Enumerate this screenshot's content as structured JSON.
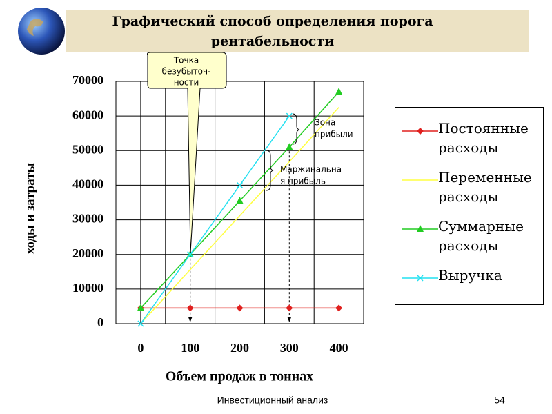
{
  "header": {
    "title": "Графический способ определения порога рентабельности"
  },
  "chart_data": {
    "type": "line",
    "x": [
      0,
      100,
      200,
      300,
      400
    ],
    "xlim": [
      -50,
      450
    ],
    "xticks": [
      0,
      100,
      200,
      300,
      400
    ],
    "ylim": [
      0,
      70000
    ],
    "yticks": [
      0,
      10000,
      20000,
      30000,
      40000,
      50000,
      60000,
      70000
    ],
    "grid": true,
    "xlabel": "Объем продаж в тоннах",
    "ylabel": "ходы и затраты",
    "series": [
      {
        "name": "Постоянные расходы",
        "color": "#e0201e",
        "marker": "diamond",
        "values": [
          4500,
          4500,
          4500,
          4500,
          4500
        ]
      },
      {
        "name": "Переменные расходы",
        "color": "#ffff40",
        "marker": "none",
        "values": [
          0,
          15600,
          31200,
          46800,
          62500
        ]
      },
      {
        "name": "Суммарные расходы",
        "color": "#22cc22",
        "marker": "triangle",
        "values": [
          4500,
          20000,
          35500,
          51000,
          67000
        ]
      },
      {
        "name": "Выручка",
        "color": "#22e0f0",
        "marker": "x",
        "values": [
          0,
          20000,
          40000,
          60000,
          null
        ]
      }
    ],
    "annotations": [
      {
        "lines": [
          "Точка",
          "безубыточ-",
          "ности"
        ]
      },
      {
        "lines": [
          "Зона",
          "прибыли"
        ]
      },
      {
        "lines": [
          "Маржинальна",
          "я прибыль"
        ]
      }
    ]
  },
  "footer": {
    "text": "Инвестиционный анализ",
    "page": "54"
  }
}
